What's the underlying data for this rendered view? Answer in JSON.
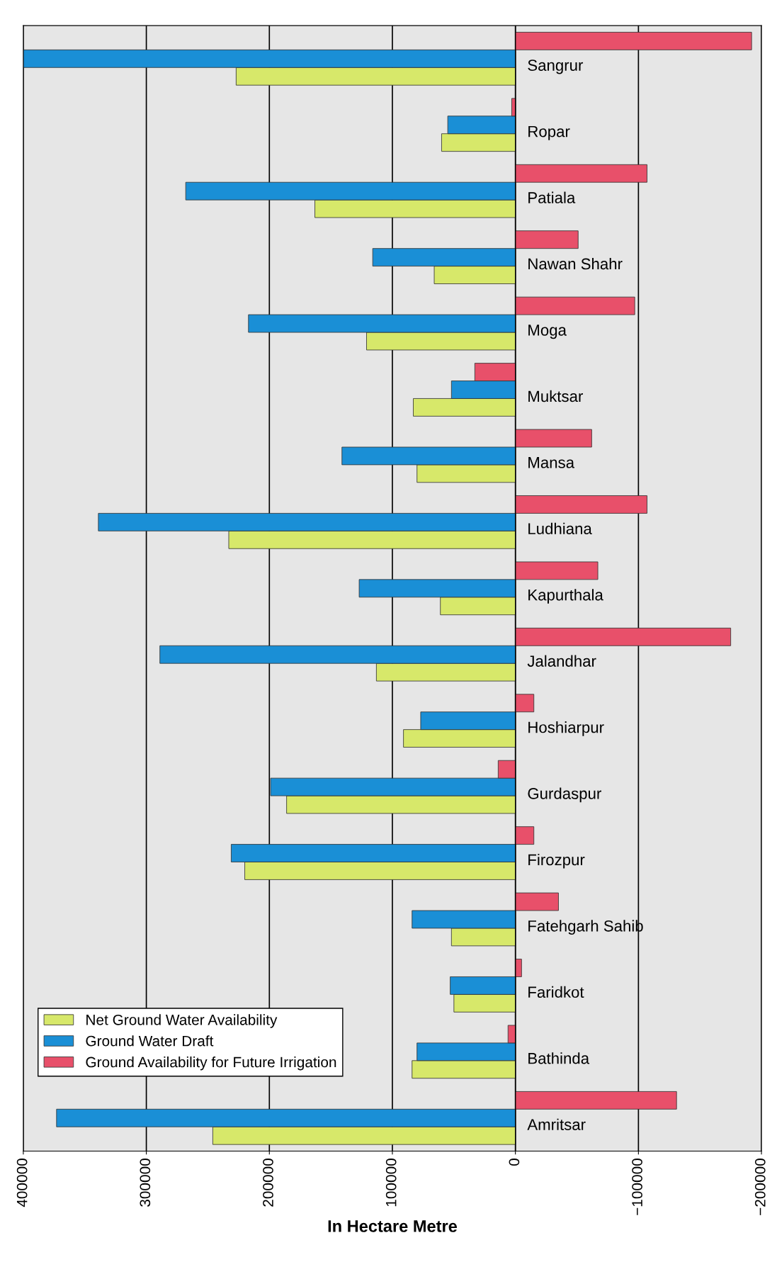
{
  "chart_data": {
    "type": "bar",
    "orientation": "horizontal",
    "xlabel": "In Hectare Metre",
    "categories": [
      "Sangrur",
      "Ropar",
      "Patiala",
      "Nawan Shahr",
      "Moga",
      "Muktsar",
      "Mansa",
      "Ludhiana",
      "Kapurthala",
      "Jalandhar",
      "Hoshiarpur",
      "Gurdaspur",
      "Firozpur",
      "Fatehgarh Sahib",
      "Faridkot",
      "Bathinda",
      "Amritsar"
    ],
    "series": [
      {
        "name": "Net Ground Water Availability",
        "color": "#d7e86a",
        "values": [
          227000,
          60000,
          163000,
          66000,
          121000,
          83000,
          80000,
          233000,
          61000,
          113000,
          91000,
          186000,
          220000,
          52000,
          50000,
          84000,
          246000
        ]
      },
      {
        "name": "Ground Water Draft",
        "color": "#1a8fd6",
        "values": [
          400000,
          55000,
          268000,
          116000,
          217000,
          52000,
          141000,
          339000,
          127000,
          289000,
          77000,
          199000,
          231000,
          84000,
          53000,
          80000,
          373000
        ]
      },
      {
        "name": "Ground Availability for Future Irrigation",
        "color": "#e8506a",
        "values": [
          -192000,
          3000,
          -107000,
          -51000,
          -97000,
          33000,
          -62000,
          -107000,
          -67000,
          -175000,
          -15000,
          14000,
          -15000,
          -35000,
          -5000,
          6000,
          -131000
        ]
      }
    ],
    "xlim": [
      400000,
      -200000
    ],
    "xticks": [
      400000,
      300000,
      200000,
      100000,
      0,
      {
        "value": -100000,
        "label": "−100000"
      },
      {
        "value": -200000,
        "label": "−200000"
      }
    ],
    "grid": "x",
    "legend": "bottom left"
  }
}
